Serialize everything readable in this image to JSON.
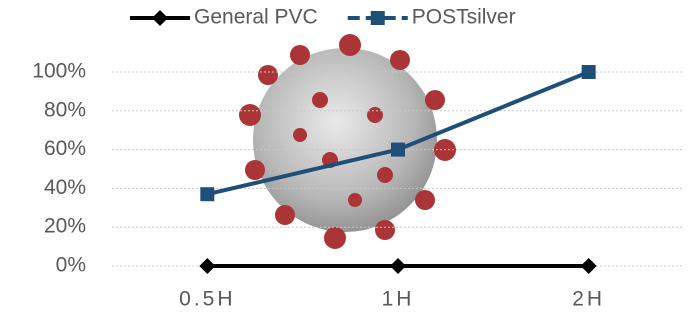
{
  "chart_data": {
    "type": "line",
    "categories": [
      "0.5H",
      "1H",
      "2H"
    ],
    "series": [
      {
        "name": "General PVC",
        "color": "#000000",
        "marker": "diamond",
        "values": [
          0,
          0,
          0
        ]
      },
      {
        "name": "POSTsilver",
        "color": "#1f4e79",
        "marker": "square",
        "values": [
          37,
          60,
          100
        ]
      }
    ],
    "ylim": [
      0,
      100
    ],
    "yticks": [
      {
        "value": 0,
        "label": "0%"
      },
      {
        "value": 20,
        "label": "20%"
      },
      {
        "value": 40,
        "label": "40%"
      },
      {
        "value": 60,
        "label": "60%"
      },
      {
        "value": 80,
        "label": "80%"
      },
      {
        "value": 100,
        "label": "100%"
      }
    ],
    "grid": true,
    "legend": "top"
  }
}
